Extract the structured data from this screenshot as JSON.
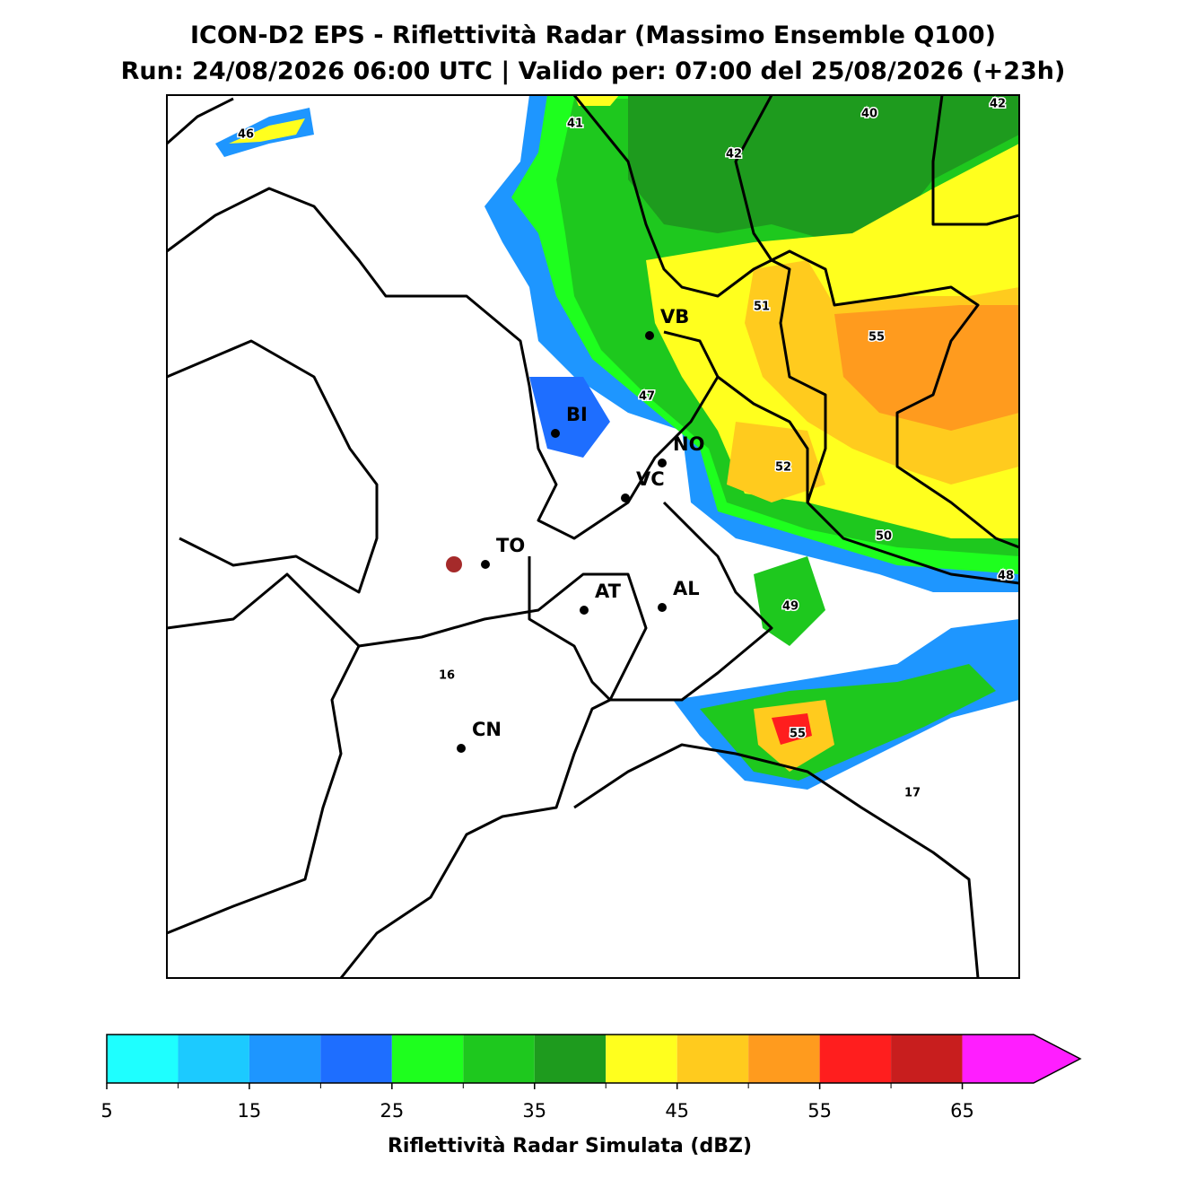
{
  "header": {
    "title": "ICON-D2 EPS - Riflettività Radar (Massimo Ensemble Q100)",
    "subtitle": "Run: 24/08/2026 06:00 UTC | Valido per: 07:00 del 25/08/2026 (+23h)"
  },
  "map": {
    "cities": [
      "VB",
      "BI",
      "NO",
      "VC",
      "TO",
      "AT",
      "AL",
      "CN"
    ],
    "max_labels": [
      "46",
      "41",
      "40",
      "42",
      "42",
      "51",
      "55",
      "47",
      "52",
      "50",
      "48",
      "49",
      "16",
      "55",
      "17"
    ]
  },
  "colorbar": {
    "label": "Riflettività Radar Simulata (dBZ)",
    "lim": [
      5,
      70
    ],
    "ticks": [
      5,
      15,
      25,
      35,
      45,
      55,
      65
    ],
    "colors": [
      "#1effff",
      "#1ccaff",
      "#1e96ff",
      "#1e6eff",
      "#1eff1e",
      "#1ec81e",
      "#1e9b1e",
      "#ffff1e",
      "#ffcb1e",
      "#ff9b1e",
      "#ff1e1e",
      "#c81e1e",
      "#ff1eff"
    ]
  }
}
